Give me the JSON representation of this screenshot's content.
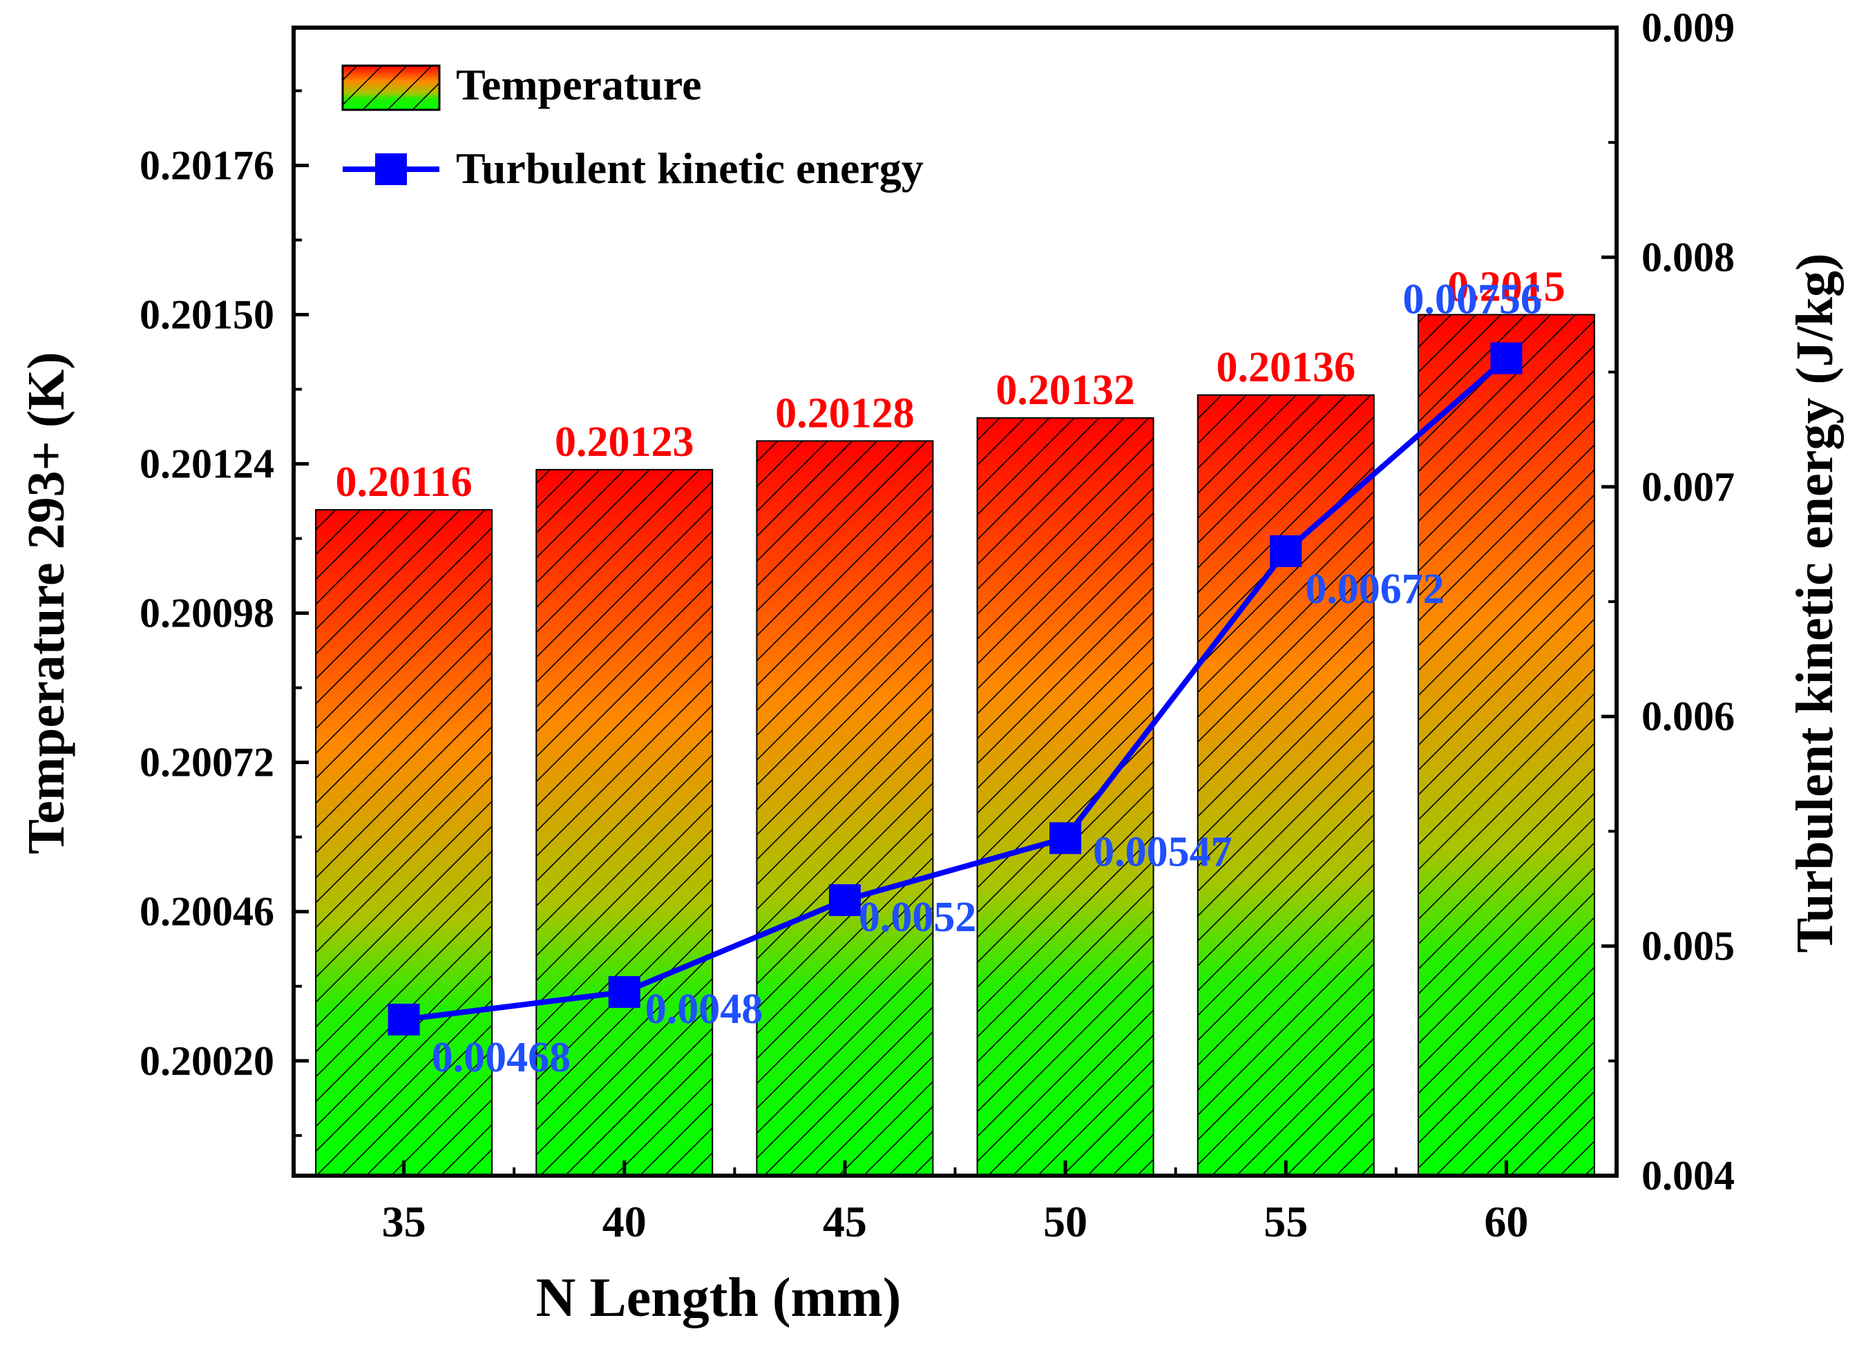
{
  "chart_data": {
    "type": "bar",
    "x_axis": {
      "label": "N Length (mm)",
      "categories": [
        "35",
        "40",
        "45",
        "50",
        "55",
        "60"
      ]
    },
    "y_left": {
      "label": "Temperature 293+ (K)",
      "range": [
        0.2,
        0.202
      ],
      "ticks": [
        "0.20020",
        "0.20046",
        "0.20072",
        "0.20098",
        "0.20124",
        "0.20150",
        "0.20176"
      ],
      "tick_values": [
        0.2002,
        0.20046,
        0.20072,
        0.20098,
        0.20124,
        0.2015,
        0.20176
      ]
    },
    "y_right": {
      "label": "Turbulent kinetic energy (J/kg)",
      "range": [
        0.004,
        0.009
      ],
      "ticks": [
        "0.004",
        "0.005",
        "0.006",
        "0.007",
        "0.008",
        "0.009"
      ],
      "tick_values": [
        0.004,
        0.005,
        0.006,
        0.007,
        0.008,
        0.009
      ]
    },
    "series": [
      {
        "name": "Temperature",
        "type": "bar",
        "axis": "left",
        "values": [
          0.20116,
          0.20123,
          0.20128,
          0.20132,
          0.20136,
          0.2015
        ],
        "labels": [
          "0.20116",
          "0.20123",
          "0.20128",
          "0.20132",
          "0.20136",
          "0.2015"
        ],
        "fill": "gradient green-to-red with diagonal hatch",
        "label_color": "#ff0000"
      },
      {
        "name": "Turbulent kinetic energy",
        "type": "line",
        "axis": "right",
        "marker": "square",
        "values": [
          0.00468,
          0.0048,
          0.0052,
          0.00547,
          0.00672,
          0.00756
        ],
        "labels": [
          "0.00468",
          "0.0048",
          "0.0052",
          "0.00547",
          "0.00672",
          "0.00756"
        ],
        "color": "#0000ff",
        "label_color": "#1f4fff"
      }
    ],
    "legend": {
      "position": "top-left",
      "entries": [
        "Temperature",
        "Turbulent kinetic energy"
      ]
    },
    "grid": false
  },
  "colors": {
    "bar_top": "#ff0000",
    "bar_mid": "#ff8800",
    "bar_bottom": "#00ff00",
    "line": "#0000ff",
    "bar_label": "#ff0000",
    "line_label": "#1f4fff"
  }
}
